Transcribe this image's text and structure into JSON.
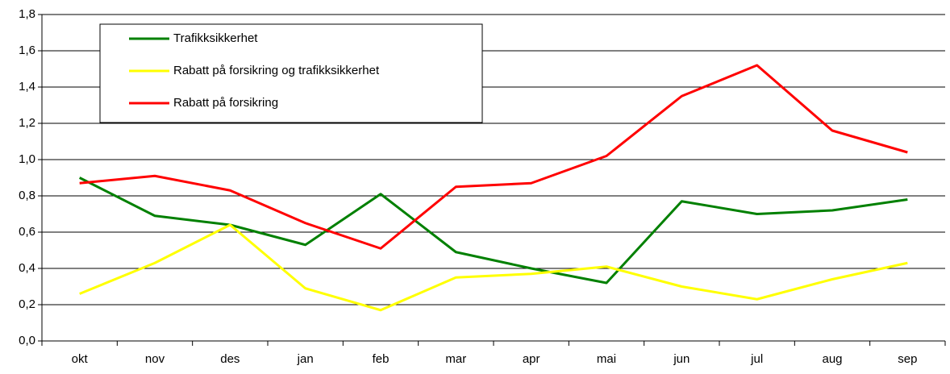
{
  "chart_data": {
    "type": "line",
    "categories": [
      "okt",
      "nov",
      "des",
      "jan",
      "feb",
      "mar",
      "apr",
      "mai",
      "jun",
      "jul",
      "aug",
      "sep"
    ],
    "series": [
      {
        "name": "Trafikksikkerhet",
        "color": "#008000",
        "values": [
          0.9,
          0.69,
          0.64,
          0.53,
          0.81,
          0.49,
          0.4,
          0.32,
          0.77,
          0.7,
          0.72,
          0.78
        ]
      },
      {
        "name": "Rabatt på forsikring og trafikksikkerhet",
        "color": "#ffff00",
        "values": [
          0.26,
          0.43,
          0.64,
          0.29,
          0.17,
          0.35,
          0.37,
          0.41,
          0.3,
          0.23,
          0.34,
          0.43
        ]
      },
      {
        "name": "Rabatt på forsikring",
        "color": "#ff0000",
        "values": [
          0.87,
          0.91,
          0.83,
          0.65,
          0.51,
          0.85,
          0.87,
          1.02,
          1.35,
          1.52,
          1.16,
          1.04
        ]
      }
    ],
    "ylim": [
      0,
      1.8
    ],
    "yticks": [
      {
        "value": 0,
        "label": "0,0"
      },
      {
        "value": 0.2,
        "label": "0,2"
      },
      {
        "value": 0.4,
        "label": "0,4"
      },
      {
        "value": 0.6,
        "label": "0,6"
      },
      {
        "value": 0.8,
        "label": "0,8"
      },
      {
        "value": 1.0,
        "label": "1,0"
      },
      {
        "value": 1.2,
        "label": "1,2"
      },
      {
        "value": 1.4,
        "label": "1,4"
      },
      {
        "value": 1.6,
        "label": "1,6"
      },
      {
        "value": 1.8,
        "label": "1,8"
      }
    ],
    "grid": true
  }
}
